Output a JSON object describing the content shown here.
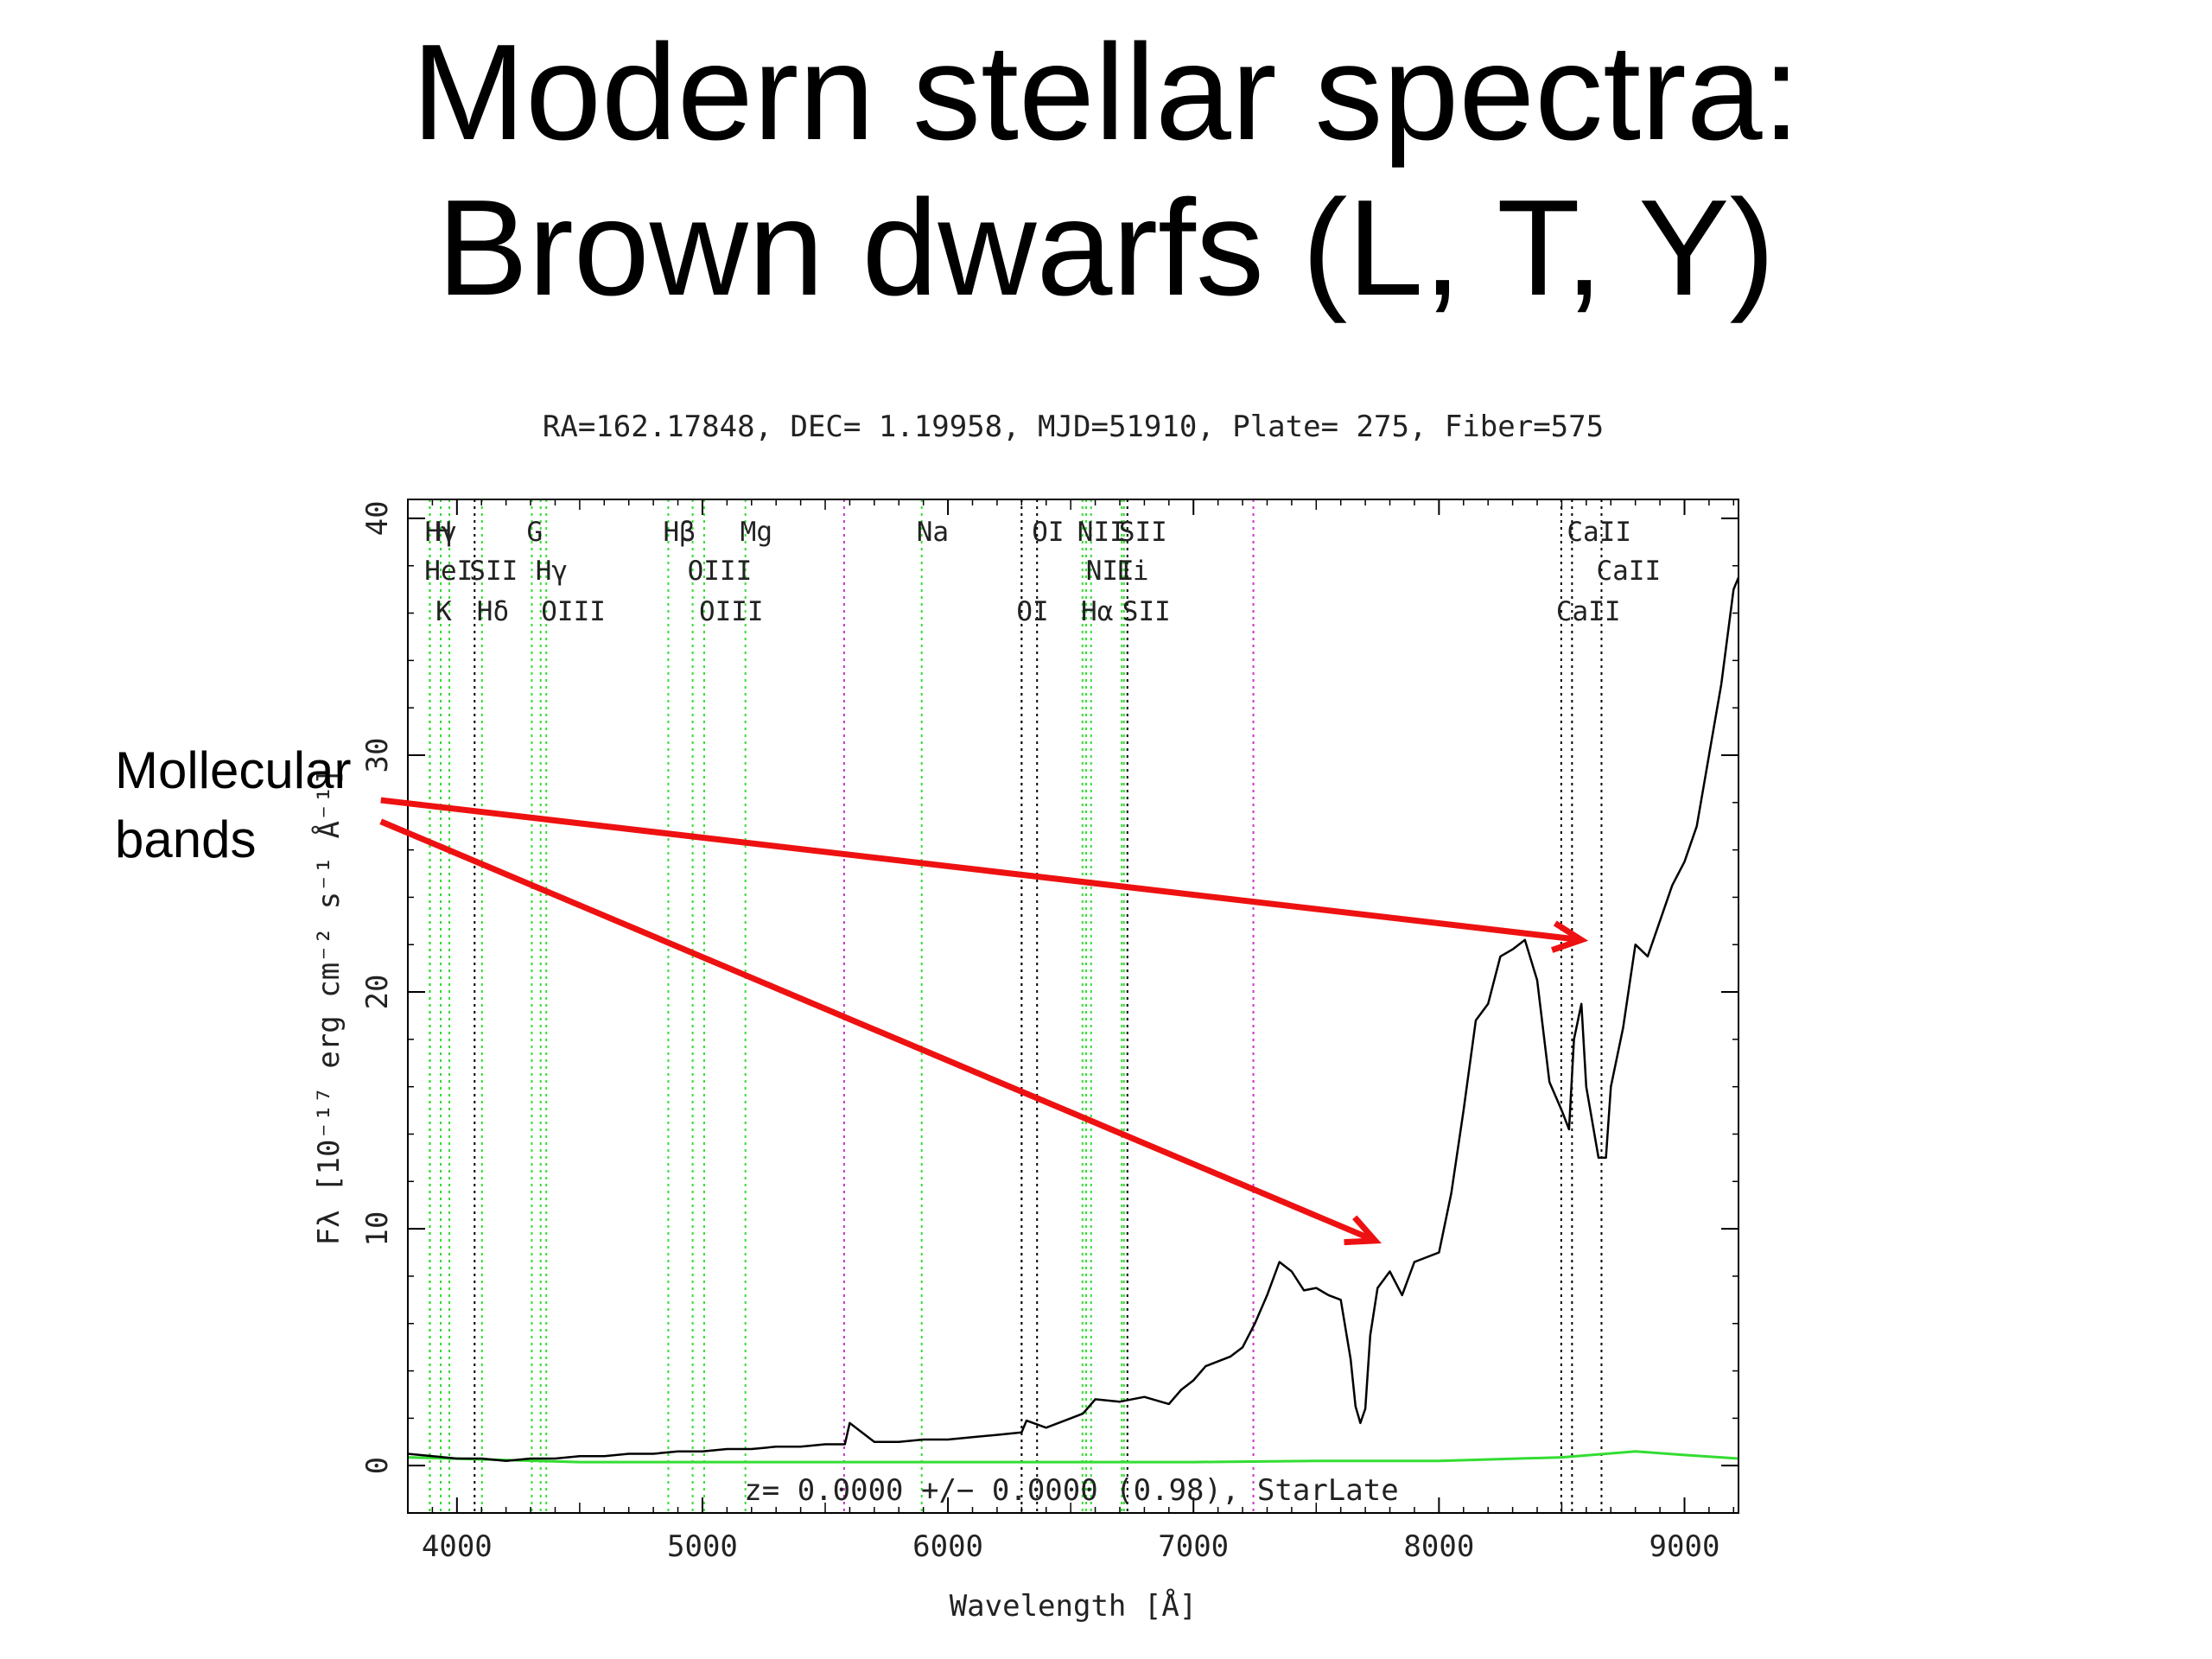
{
  "slide": {
    "title_line1": "Modern stellar spectra:",
    "title_line2": "Brown dwarfs (L, T, Y)",
    "callout_line1": "Mollecular",
    "callout_line2": "bands"
  },
  "chart_data": {
    "type": "line",
    "title": "RA=162.17848, DEC= 1.19958, MJD=51910, Plate= 275, Fiber=575",
    "xlabel": "Wavelength [Å]",
    "ylabel": "Fλ [10⁻¹⁷ erg cm⁻² s⁻¹ Å⁻¹]",
    "xlim": [
      3800,
      9220
    ],
    "ylim": [
      -2,
      40.8
    ],
    "xticks": [
      4000,
      5000,
      6000,
      7000,
      8000,
      9000
    ],
    "yticks": [
      0,
      10,
      20,
      30,
      40
    ],
    "annotation": "z= 0.0000 +/− 0.0000 (0.98), StarLate",
    "spectrum": {
      "x": [
        3800,
        3900,
        4000,
        4100,
        4200,
        4300,
        4400,
        4500,
        4600,
        4700,
        4800,
        4900,
        5000,
        5100,
        5200,
        5300,
        5400,
        5500,
        5580,
        5600,
        5700,
        5800,
        5900,
        6000,
        6100,
        6200,
        6300,
        6320,
        6400,
        6500,
        6550,
        6600,
        6700,
        6800,
        6900,
        6950,
        7000,
        7050,
        7100,
        7150,
        7200,
        7250,
        7300,
        7350,
        7400,
        7450,
        7500,
        7550,
        7600,
        7640,
        7660,
        7680,
        7700,
        7720,
        7750,
        7800,
        7850,
        7900,
        7950,
        8000,
        8050,
        8100,
        8150,
        8200,
        8250,
        8300,
        8350,
        8400,
        8450,
        8500,
        8530,
        8550,
        8580,
        8600,
        8650,
        8680,
        8700,
        8750,
        8800,
        8850,
        8900,
        8950,
        9000,
        9050,
        9100,
        9150,
        9200,
        9220
      ],
      "y": [
        0.5,
        0.4,
        0.3,
        0.3,
        0.2,
        0.3,
        0.3,
        0.4,
        0.4,
        0.5,
        0.5,
        0.6,
        0.6,
        0.7,
        0.7,
        0.8,
        0.8,
        0.9,
        0.9,
        1.8,
        1.0,
        1.0,
        1.1,
        1.1,
        1.2,
        1.3,
        1.4,
        1.9,
        1.6,
        2.0,
        2.2,
        2.8,
        2.7,
        2.9,
        2.6,
        3.2,
        3.6,
        4.2,
        4.4,
        4.6,
        5.0,
        6.0,
        7.2,
        8.6,
        8.2,
        7.4,
        7.5,
        7.2,
        7.0,
        4.5,
        2.5,
        1.8,
        2.4,
        5.5,
        7.5,
        8.2,
        7.2,
        8.6,
        8.8,
        9.0,
        11.5,
        15.0,
        18.8,
        19.5,
        21.5,
        21.8,
        22.2,
        20.5,
        16.2,
        15.0,
        14.2,
        18.0,
        19.5,
        16.0,
        13.0,
        13.0,
        16.0,
        18.5,
        22.0,
        21.5,
        23.0,
        24.5,
        25.5,
        27.0,
        30.0,
        33.0,
        37.0,
        37.5
      ]
    },
    "error": {
      "x": [
        3800,
        4500,
        5000,
        5500,
        6000,
        6500,
        7000,
        7500,
        8000,
        8500,
        8800,
        9000,
        9220
      ],
      "y": [
        0.35,
        0.15,
        0.15,
        0.15,
        0.15,
        0.15,
        0.15,
        0.2,
        0.2,
        0.35,
        0.6,
        0.45,
        0.3
      ]
    },
    "line_markers": [
      {
        "x": 3890,
        "color": "green",
        "label": "Hγ",
        "row": 1
      },
      {
        "x": 3934,
        "color": "green",
        "label": "H",
        "row": 1
      },
      {
        "x": 3969,
        "color": "green",
        "label": "",
        "row": 0
      },
      {
        "x": 3889,
        "color": "green",
        "label": "HeI",
        "row": 2
      },
      {
        "x": 4072,
        "color": "black",
        "label": "SII",
        "row": 2
      },
      {
        "x": 3934,
        "color": "green",
        "label": "K",
        "row": 3
      },
      {
        "x": 4102,
        "color": "green",
        "label": "Hδ",
        "row": 3
      },
      {
        "x": 4305,
        "color": "green",
        "label": "G",
        "row": 1
      },
      {
        "x": 4341,
        "color": "green",
        "label": "Hγ",
        "row": 2
      },
      {
        "x": 4364,
        "color": "green",
        "label": "OIII",
        "row": 3
      },
      {
        "x": 4861,
        "color": "green",
        "label": "Hβ",
        "row": 1
      },
      {
        "x": 4960,
        "color": "green",
        "label": "OIII",
        "row": 2
      },
      {
        "x": 5007,
        "color": "green",
        "label": "OIII",
        "row": 3
      },
      {
        "x": 5175,
        "color": "green",
        "label": "Mg",
        "row": 1
      },
      {
        "x": 5577,
        "color": "magenta",
        "label": "",
        "row": 0
      },
      {
        "x": 5893,
        "color": "green",
        "label": "Na",
        "row": 1
      },
      {
        "x": 6300,
        "color": "magenta",
        "label": "",
        "row": 0
      },
      {
        "x": 6363,
        "color": "black",
        "label": "OI",
        "row": 1
      },
      {
        "x": 6300,
        "color": "black",
        "label": "OI",
        "row": 3
      },
      {
        "x": 6548,
        "color": "green",
        "label": "NII",
        "row": 1
      },
      {
        "x": 6717,
        "color": "green",
        "label": "SII",
        "row": 1
      },
      {
        "x": 6583,
        "color": "green",
        "label": "NII",
        "row": 2
      },
      {
        "x": 6708,
        "color": "green",
        "label": "Li",
        "row": 2
      },
      {
        "x": 6563,
        "color": "green",
        "label": "Hα",
        "row": 3
      },
      {
        "x": 6731,
        "color": "black",
        "label": "SII",
        "row": 3
      },
      {
        "x": 7244,
        "color": "magenta",
        "label": "",
        "row": 0
      },
      {
        "x": 8542,
        "color": "black",
        "label": "CaII",
        "row": 1
      },
      {
        "x": 8662,
        "color": "black",
        "label": "CaII",
        "row": 2
      },
      {
        "x": 8498,
        "color": "black",
        "label": "CaII",
        "row": 3
      }
    ],
    "arrows": [
      {
        "from_x": 3690,
        "from_y": 28.1,
        "to_x": 8580,
        "to_y": 22.2
      },
      {
        "from_x": 3690,
        "from_y": 27.2,
        "to_x": 7740,
        "to_y": 9.5
      }
    ],
    "colors": {
      "spectrum": "#000000",
      "error": "#33dd33",
      "green_lines": "#33dd33",
      "magenta_lines": "#cc33cc",
      "black_lines": "#000000",
      "arrows": "#ee1111"
    }
  }
}
